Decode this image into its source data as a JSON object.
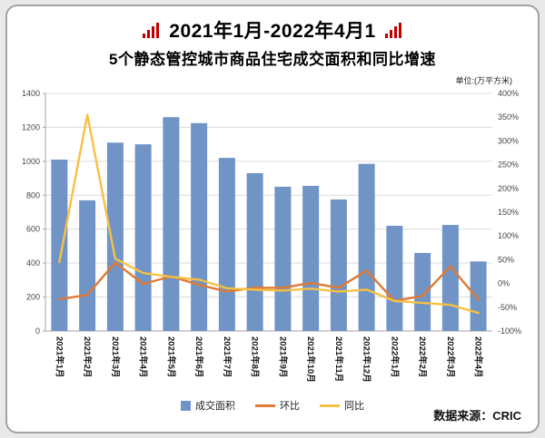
{
  "header": {
    "title": "2021年1月-2022年4月1",
    "subtitle": "5个静态管控城市商品住宅成交面积和同比增速",
    "unit": "单位:(万平方米)",
    "icon_color": "#c00000"
  },
  "chart_data": {
    "type": "bar",
    "subtype": "combo-bar-line",
    "categories": [
      "2021年1月",
      "2021年2月",
      "2021年3月",
      "2021年4月",
      "2021年5月",
      "2021年6月",
      "2021年7月",
      "2021年8月",
      "2021年9月",
      "2021年10月",
      "2021年11月",
      "2021年12月",
      "2022年1月",
      "2022年2月",
      "2022年3月",
      "2022年4月"
    ],
    "series": [
      {
        "name": "成交面积",
        "type": "bar",
        "axis": "left",
        "color": "#7094c6",
        "values": [
          1010,
          770,
          1110,
          1100,
          1260,
          1225,
          1020,
          930,
          850,
          855,
          775,
          985,
          620,
          460,
          625,
          410
        ]
      },
      {
        "name": "环比",
        "type": "line",
        "axis": "right",
        "color": "#e07a35",
        "values": [
          -33,
          -24,
          44,
          -1,
          15,
          -3,
          -17,
          -9,
          -9,
          1,
          -9,
          27,
          -37,
          -26,
          36,
          -34
        ]
      },
      {
        "name": "同比",
        "type": "line",
        "axis": "right",
        "color": "#f6c142",
        "values": [
          45,
          355,
          52,
          22,
          14,
          8,
          -10,
          -13,
          -15,
          -11,
          -17,
          -13,
          -37,
          -41,
          -45,
          -62
        ]
      }
    ],
    "left_axis": {
      "min": 0,
      "max": 1400,
      "step": 200
    },
    "right_axis": {
      "min": -100,
      "max": 400,
      "step": 50,
      "suffix": "%"
    },
    "grid": true,
    "legend_position": "bottom",
    "grid_color": "#dcdcdc",
    "axis_color": "#a6a6a6",
    "tick_label_color": "#444"
  },
  "footer": {
    "source": "数据来源：CRIC"
  }
}
